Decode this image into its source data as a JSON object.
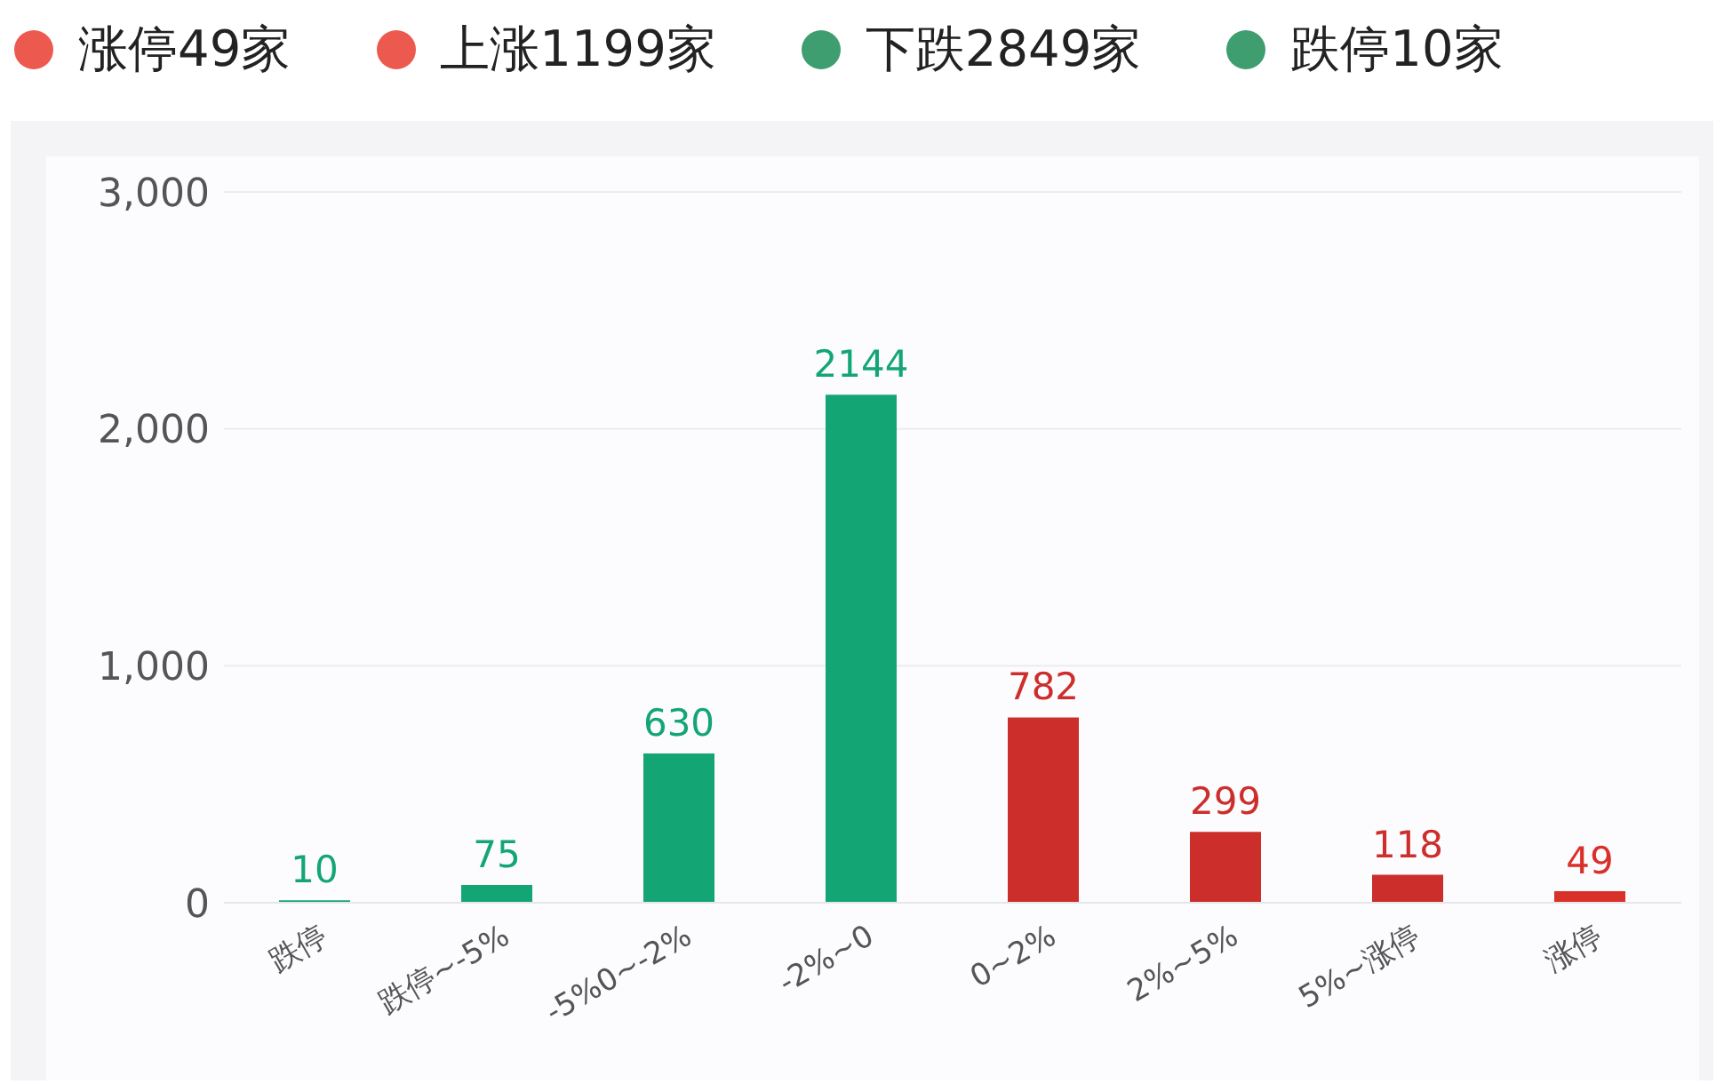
{
  "chart_data": {
    "type": "bar",
    "annotations": [
      "涨停49家",
      "上涨1199家",
      "下跌2849家",
      "跌停10家"
    ],
    "categories": [
      "跌停",
      "跌停~-5%",
      "-5%0~-2%",
      "-2%~0",
      "0~2%",
      "2%~5%",
      "5%~涨停",
      "涨停"
    ],
    "values": [
      10,
      75,
      630,
      2144,
      782,
      299,
      118,
      49
    ],
    "colors": [
      "#13a674",
      "#13a674",
      "#13a674",
      "#13a674",
      "#cc2e2b",
      "#cc2e2b",
      "#cc2e2b",
      "#d9302a"
    ],
    "ylim": [
      0,
      3000
    ],
    "yticks": [
      0,
      {
        "value": 1000,
        "label": "1,000"
      },
      {
        "value": 2000,
        "label": "2,000"
      },
      {
        "value": 3000,
        "label": "3,000"
      }
    ],
    "grid": "y",
    "data_labels": true
  }
}
